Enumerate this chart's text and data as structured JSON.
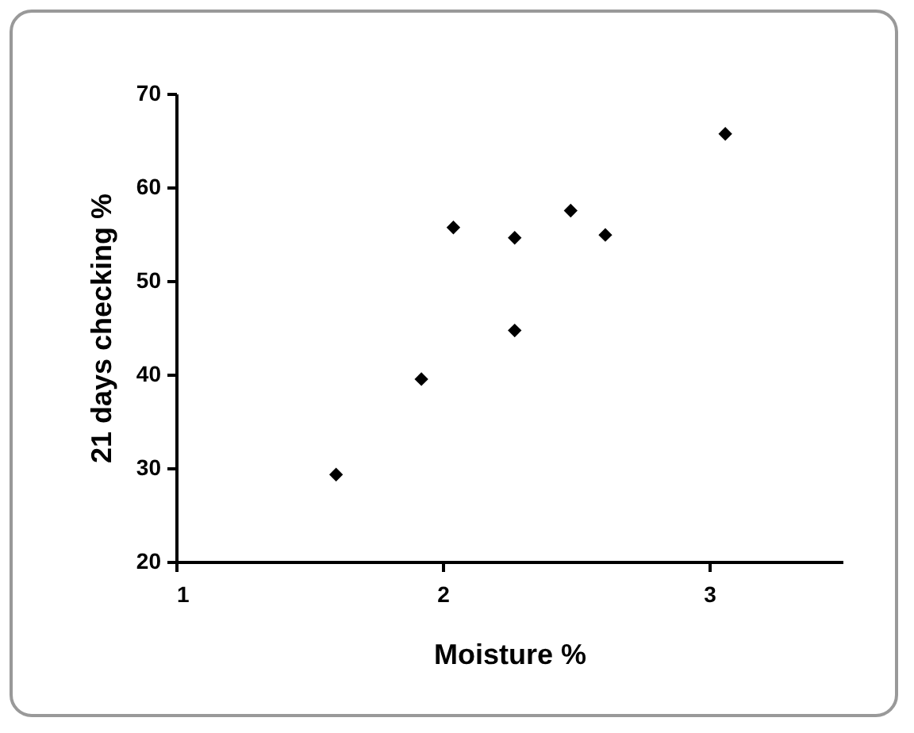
{
  "chart_data": {
    "type": "scatter",
    "xlabel": "Moisture %",
    "ylabel": "21 days checking %",
    "x": [
      1.6,
      1.92,
      2.04,
      2.27,
      2.27,
      2.48,
      2.61,
      3.06
    ],
    "values": [
      29.3,
      39.5,
      55.7,
      54.6,
      44.7,
      57.5,
      54.9,
      65.7
    ],
    "color": "#000000",
    "marker": "diamond",
    "grid": false,
    "xlim": [
      1,
      3.5
    ],
    "xticks": [
      1,
      2,
      3
    ],
    "ylim": [
      20,
      70
    ],
    "yticks": [
      20,
      30,
      40,
      50,
      60,
      70
    ]
  }
}
